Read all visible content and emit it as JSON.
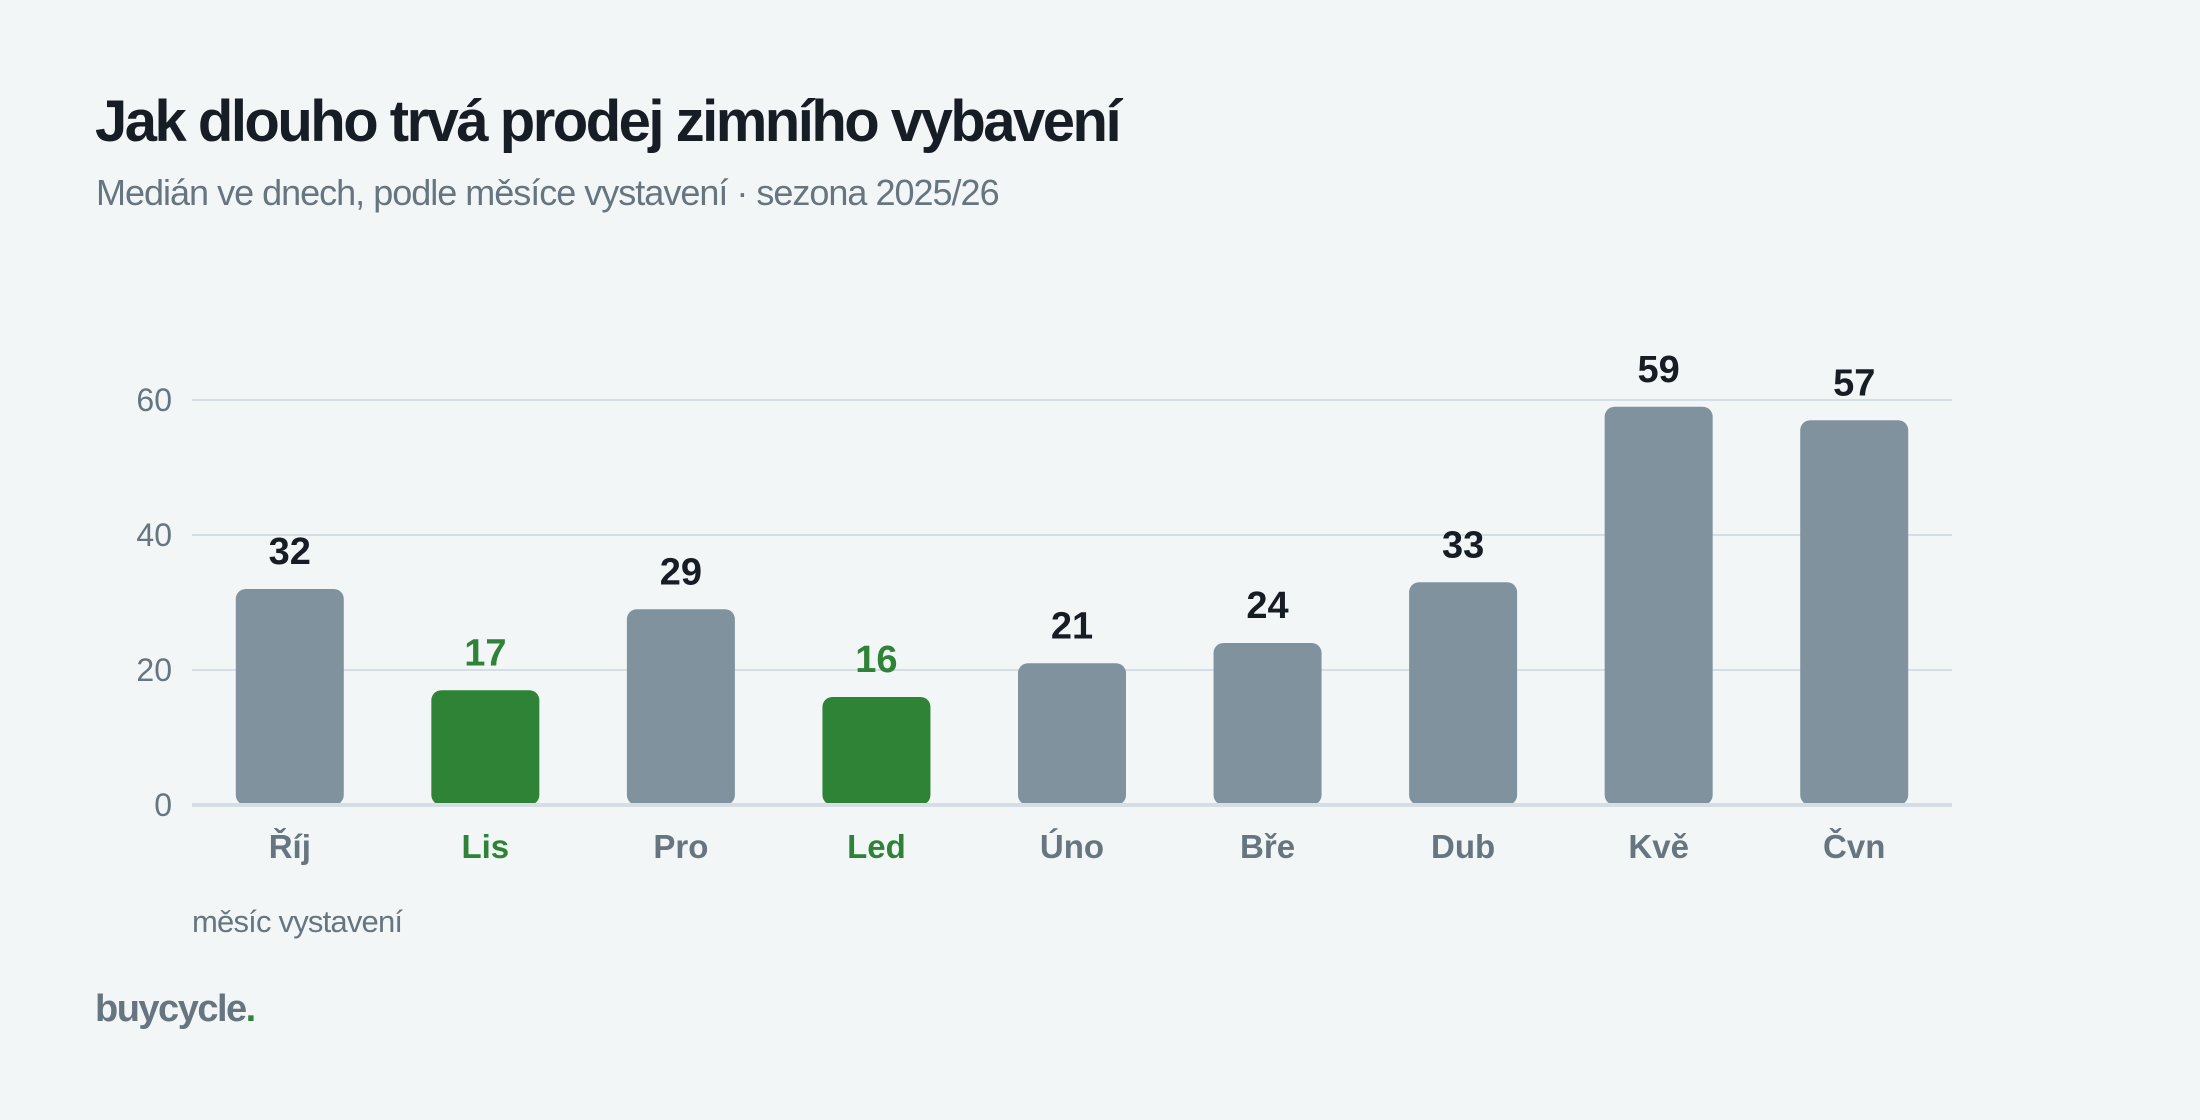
{
  "header": {
    "title": "Jak dlouho trvá prodej zimního vybavení",
    "subtitle": "Medián ve dnech, podle měsíce vystavení · sezona 2025/26"
  },
  "footer": {
    "brand_name": "buycycle",
    "brand_dot": "."
  },
  "colors": {
    "bar_default": "#7f929d",
    "bar_highlight": "#2e8337",
    "value_label": "#161d24",
    "axis_text": "#66757f",
    "gridline": "#d5dee4"
  },
  "chart_data": {
    "type": "bar",
    "categories": [
      "Říj",
      "Lis",
      "Pro",
      "Led",
      "Úno",
      "Bře",
      "Dub",
      "Kvě",
      "Čvn"
    ],
    "values": [
      32,
      17,
      29,
      16,
      21,
      24,
      33,
      59,
      57
    ],
    "highlighted": [
      "Lis",
      "Led"
    ],
    "title": "Jak dlouho trvá prodej zimního vybavení",
    "subtitle": "Medián ve dnech, podle měsíce vystavení · sezona 2025/26",
    "xlabel": "měsíc vystavení",
    "ylabel": "",
    "ylim": [
      0,
      60
    ],
    "yticks": [
      0,
      20,
      40,
      60
    ],
    "grid": true,
    "legend": "none"
  }
}
